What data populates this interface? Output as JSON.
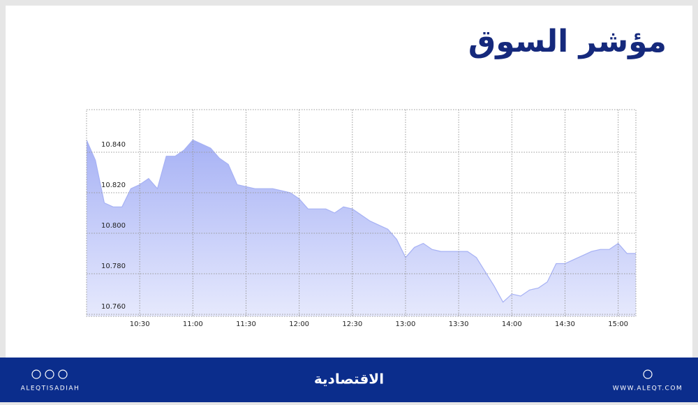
{
  "chart_data": {
    "type": "area",
    "title": "مؤشر السوق",
    "x": [
      "10:00",
      "10:05",
      "10:10",
      "10:15",
      "10:20",
      "10:25",
      "10:30",
      "10:35",
      "10:40",
      "10:45",
      "10:50",
      "10:55",
      "11:00",
      "11:05",
      "11:10",
      "11:15",
      "11:20",
      "11:25",
      "11:30",
      "11:35",
      "11:40",
      "11:45",
      "11:50",
      "11:55",
      "12:00",
      "12:05",
      "12:10",
      "12:15",
      "12:20",
      "12:25",
      "12:30",
      "12:35",
      "12:40",
      "12:45",
      "12:50",
      "12:55",
      "13:00",
      "13:05",
      "13:10",
      "13:15",
      "13:20",
      "13:25",
      "13:30",
      "13:35",
      "13:40",
      "13:45",
      "13:50",
      "13:55",
      "14:00",
      "14:05",
      "14:10",
      "14:15",
      "14:20",
      "14:25",
      "14:30",
      "14:35",
      "14:40",
      "14:45",
      "14:50",
      "14:55",
      "15:00",
      "15:05",
      "15:10"
    ],
    "values": [
      10.846,
      10.836,
      10.815,
      10.813,
      10.813,
      10.822,
      10.824,
      10.827,
      10.822,
      10.838,
      10.838,
      10.841,
      10.846,
      10.844,
      10.842,
      10.837,
      10.834,
      10.824,
      10.823,
      10.822,
      10.822,
      10.822,
      10.821,
      10.82,
      10.817,
      10.812,
      10.812,
      10.812,
      10.81,
      10.813,
      10.812,
      10.809,
      10.806,
      10.804,
      10.802,
      10.797,
      10.788,
      10.793,
      10.795,
      10.792,
      10.791,
      10.791,
      10.791,
      10.791,
      10.788,
      10.781,
      10.774,
      10.766,
      10.77,
      10.769,
      10.772,
      10.773,
      10.776,
      10.785,
      10.785,
      10.787,
      10.789,
      10.791,
      10.792,
      10.792,
      10.795,
      10.79,
      10.79
    ],
    "color": "#a6b1f4",
    "xlim": [
      "10:00",
      "15:10"
    ],
    "xticks": [
      "10:30",
      "11:00",
      "11:30",
      "12:00",
      "12:30",
      "13:00",
      "13:30",
      "14:00",
      "14:30",
      "15:00"
    ],
    "ylim": [
      10.759,
      10.861
    ],
    "yticks": [
      {
        "value": 10.76,
        "label": "10.760"
      },
      {
        "value": 10.78,
        "label": "10.780"
      },
      {
        "value": 10.8,
        "label": "10.800"
      },
      {
        "value": 10.82,
        "label": "10.820"
      },
      {
        "value": 10.84,
        "label": "10.840"
      }
    ],
    "grid": true
  },
  "footer": {
    "handle": "ALEQTISADIAH",
    "logo": "الاقتصادية",
    "website": "WWW.ALEQT.COM"
  }
}
